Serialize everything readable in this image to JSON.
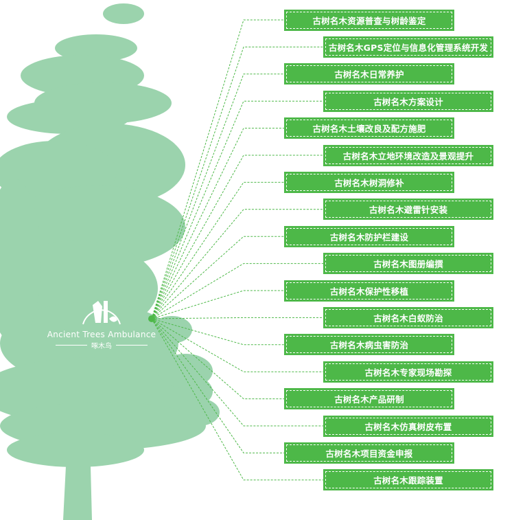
{
  "colors": {
    "box": "#4db848",
    "tree": "#9bd3ad",
    "line": "#4db848"
  },
  "logo": {
    "name_en": "Ancient Trees Ambulance",
    "name_cn": "啄木鸟",
    "icon": "woodpecker-logo-icon"
  },
  "services": [
    "古树名木资源普查与树龄鉴定",
    "古树名木GPS定位与信息化管理系统开发",
    "古树名木日常养护",
    "古树名木方案设计",
    "古树名木土壤改良及配方施肥",
    "古树名木立地环境改造及景观提升",
    "古树名木树洞修补",
    "古树名木避雷针安装",
    "古树名木防护栏建设",
    "古树名木图册编撰",
    "古树名木保护性移植",
    "古树名木白蚁防治",
    "古树名木病虫害防治",
    "古树名木专家现场勘探",
    "古树名木产品研制",
    "古树名木仿真树皮布置",
    "古树名木项目资金申报",
    "古树名木跟踪装置"
  ]
}
